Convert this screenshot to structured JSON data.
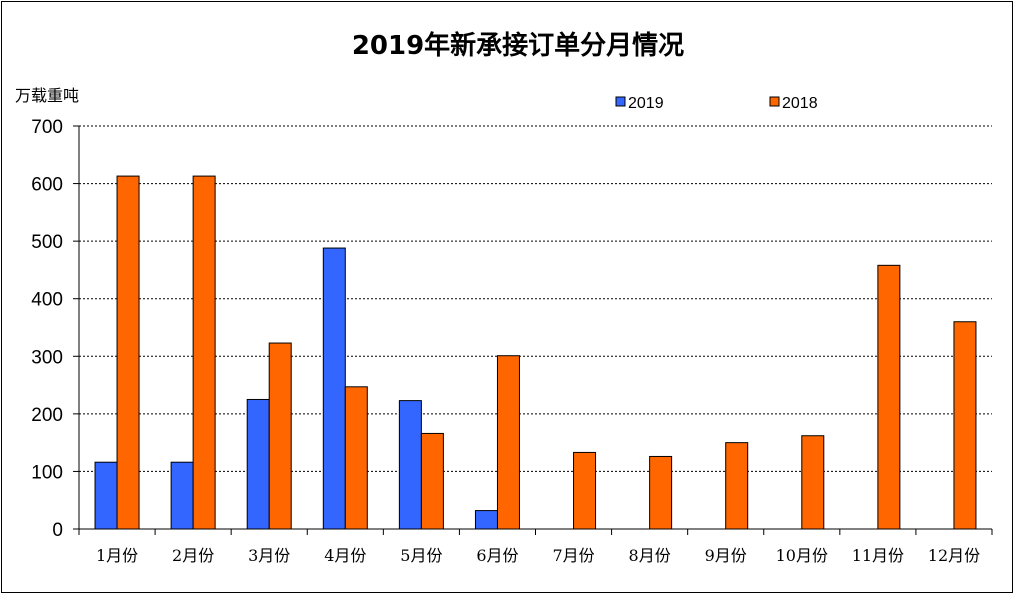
{
  "chart_data": {
    "type": "bar",
    "title": "2019年新承接订单分月情况",
    "ylabel": "万载重吨",
    "xlabel": "",
    "ylim": [
      0,
      700
    ],
    "yticks": [
      0,
      100,
      200,
      300,
      400,
      500,
      600,
      700
    ],
    "grid": true,
    "legend_position": "top-right",
    "categories": [
      "1月份",
      "2月份",
      "3月份",
      "4月份",
      "5月份",
      "6月份",
      "7月份",
      "8月份",
      "9月份",
      "10月份",
      "11月份",
      "12月份"
    ],
    "series": [
      {
        "name": "2019",
        "color": "#3366ff",
        "values": [
          116,
          116,
          225,
          488,
          223,
          32,
          null,
          null,
          null,
          null,
          null,
          null
        ]
      },
      {
        "name": "2018",
        "color": "#ff6600",
        "values": [
          613,
          613,
          323,
          247,
          166,
          301,
          133,
          126,
          150,
          162,
          458,
          360
        ]
      }
    ]
  }
}
